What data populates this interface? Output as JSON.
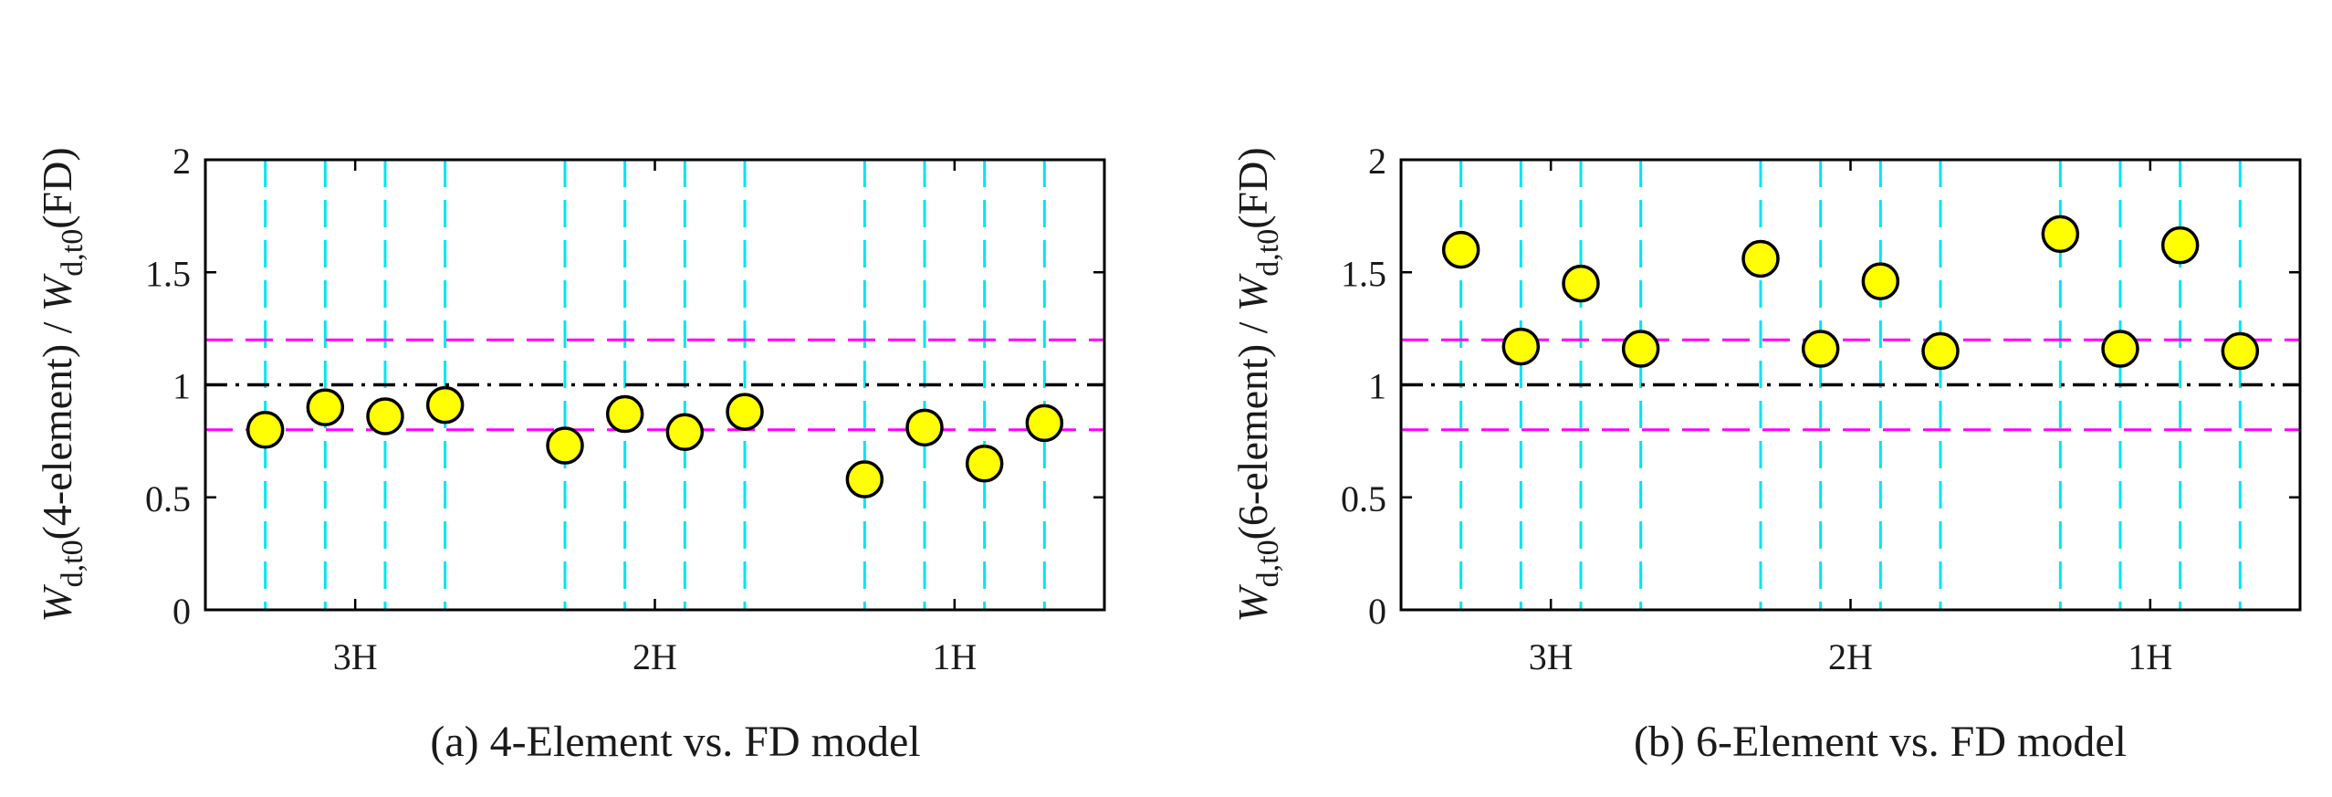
{
  "chart_data": [
    {
      "type": "scatter",
      "caption": "(a) 4-Element vs. FD model",
      "ylabel": {
        "sym": "W",
        "sub": "d,t0",
        "text1": "(4-element) / ",
        "text2": "(FD)"
      },
      "ylim": [
        0,
        2
      ],
      "yticks": [
        0,
        0.5,
        1,
        1.5,
        2
      ],
      "ytick_labels": [
        "0",
        "0.5",
        "1",
        "1.5",
        "2"
      ],
      "categories": [
        "3H",
        "2H",
        "1H"
      ],
      "category_x": [
        1.5,
        6.5,
        11.5
      ],
      "reference_lines": {
        "center": 1.0,
        "upper": 1.2,
        "lower": 0.8
      },
      "case_x": [
        0,
        1,
        2,
        3,
        5,
        6,
        7,
        8,
        10,
        11,
        12,
        13
      ],
      "values": [
        0.8,
        0.9,
        0.86,
        0.91,
        0.73,
        0.87,
        0.79,
        0.88,
        0.58,
        0.81,
        0.65,
        0.83
      ]
    },
    {
      "type": "scatter",
      "caption": "(b) 6-Element vs. FD model",
      "ylabel": {
        "sym": "W",
        "sub": "d,t0",
        "text1": "(6-element) / ",
        "text2": "(FD)"
      },
      "ylim": [
        0,
        2
      ],
      "yticks": [
        0,
        0.5,
        1,
        1.5,
        2
      ],
      "ytick_labels": [
        "0",
        "0.5",
        "1",
        "1.5",
        "2"
      ],
      "categories": [
        "3H",
        "2H",
        "1H"
      ],
      "category_x": [
        1.5,
        6.5,
        11.5
      ],
      "reference_lines": {
        "center": 1.0,
        "upper": 1.2,
        "lower": 0.8
      },
      "case_x": [
        0,
        1,
        2,
        3,
        5,
        6,
        7,
        8,
        10,
        11,
        12,
        13
      ],
      "values": [
        1.6,
        1.17,
        1.45,
        1.16,
        1.56,
        1.16,
        1.46,
        1.15,
        1.67,
        1.16,
        1.62,
        1.15
      ]
    }
  ],
  "colors": {
    "marker_fill": "#ffff00",
    "marker_edge": "#000000",
    "case_lines": "#00e5ee",
    "limit_lines": "#ff00ff",
    "center_line": "#000000",
    "axes": "#000000"
  }
}
